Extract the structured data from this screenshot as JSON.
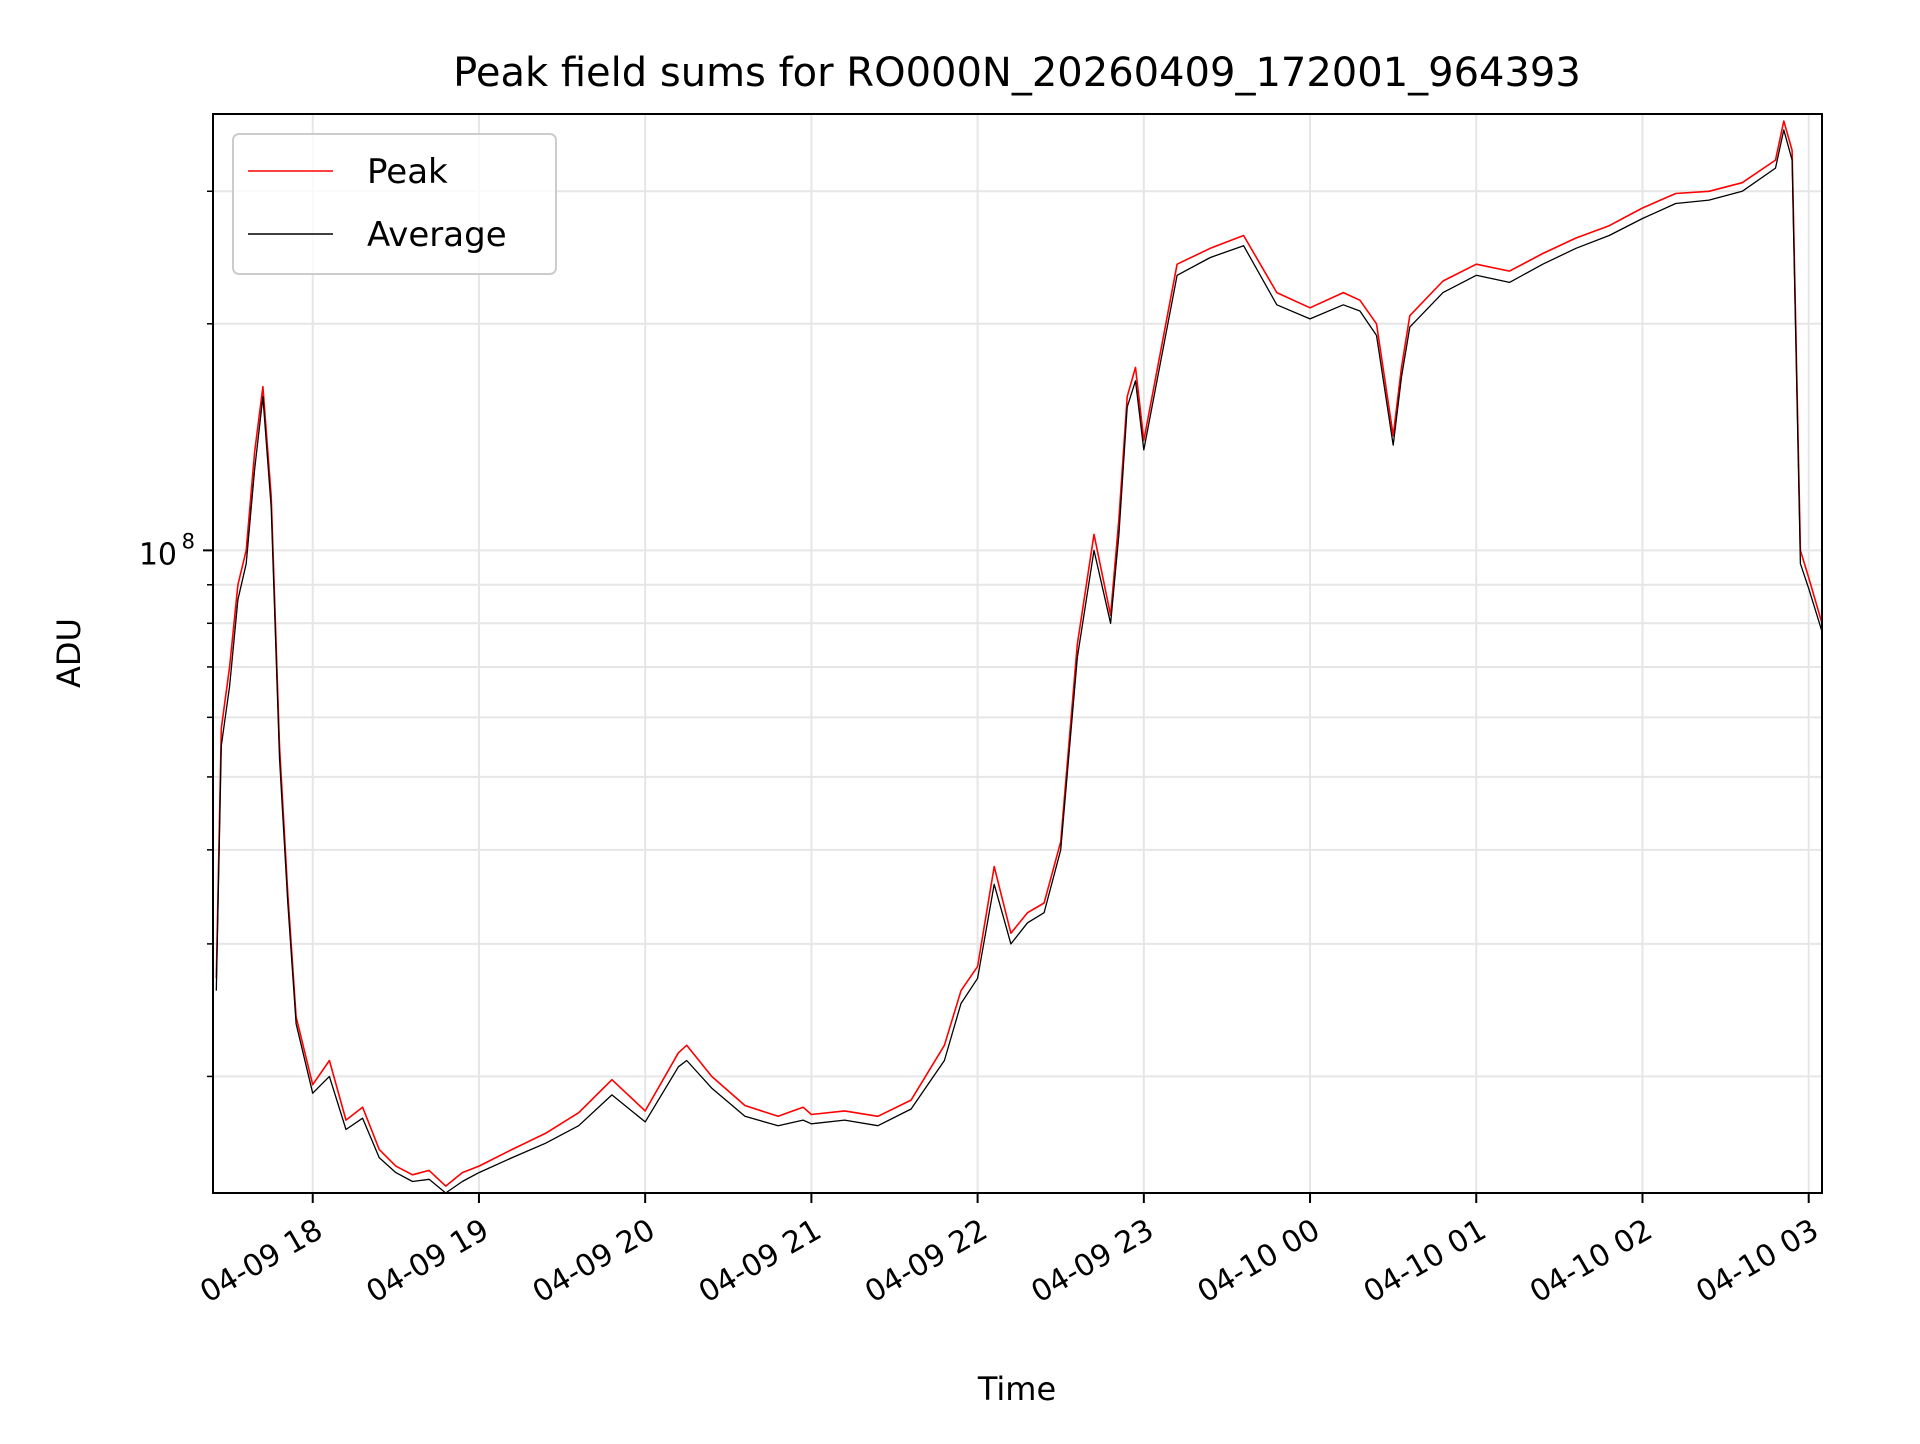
{
  "chart_data": {
    "type": "line",
    "title": "Peak field sums for RO000N_20260409_172001_964393",
    "xlabel": "Time",
    "ylabel": "ADU",
    "yscale": "log",
    "grid": true,
    "legend_position": "top-left",
    "xlim_hours": [
      17.4,
      27.08
    ],
    "ylim": [
      14000000,
      380000000
    ],
    "x_unit": "hours since 04-09 00:00",
    "x_ticks": [
      {
        "value": 18,
        "label": "04-09 18"
      },
      {
        "value": 19,
        "label": "04-09 19"
      },
      {
        "value": 20,
        "label": "04-09 20"
      },
      {
        "value": 21,
        "label": "04-09 21"
      },
      {
        "value": 22,
        "label": "04-09 22"
      },
      {
        "value": 23,
        "label": "04-09 23"
      },
      {
        "value": 24,
        "label": "04-10 00"
      },
      {
        "value": 25,
        "label": "04-10 01"
      },
      {
        "value": 26,
        "label": "04-10 02"
      },
      {
        "value": 27,
        "label": "04-10 03"
      }
    ],
    "y_major_ticks": [
      {
        "value": 100000000,
        "base": "10",
        "exp": "8"
      }
    ],
    "y_minor_ticks": [
      20000000,
      30000000,
      40000000,
      50000000,
      60000000,
      70000000,
      80000000,
      90000000,
      200000000,
      300000000
    ],
    "series": [
      {
        "name": "Peak",
        "color": "#ff0000",
        "x": [
          17.42,
          17.45,
          17.5,
          17.55,
          17.6,
          17.65,
          17.7,
          17.75,
          17.8,
          17.85,
          17.9,
          18.0,
          18.1,
          18.2,
          18.3,
          18.4,
          18.5,
          18.6,
          18.7,
          18.8,
          18.9,
          19.0,
          19.2,
          19.4,
          19.6,
          19.8,
          20.0,
          20.2,
          20.25,
          20.4,
          20.6,
          20.8,
          20.95,
          21.0,
          21.2,
          21.4,
          21.6,
          21.8,
          21.9,
          22.0,
          22.1,
          22.2,
          22.3,
          22.4,
          22.5,
          22.6,
          22.7,
          22.8,
          22.85,
          22.9,
          22.95,
          23.0,
          23.2,
          23.4,
          23.6,
          23.8,
          24.0,
          24.2,
          24.3,
          24.4,
          24.5,
          24.55,
          24.6,
          24.8,
          25.0,
          25.2,
          25.4,
          25.6,
          25.8,
          26.0,
          26.2,
          26.4,
          26.6,
          26.8,
          26.85,
          26.9,
          26.95,
          27.0,
          27.08
        ],
        "values": [
          27000000,
          58000000,
          70000000,
          90000000,
          100000000,
          135000000,
          165000000,
          118000000,
          55000000,
          35000000,
          24000000,
          19500000,
          21000000,
          17500000,
          18200000,
          16000000,
          15200000,
          14800000,
          15000000,
          14300000,
          14900000,
          15200000,
          16000000,
          16800000,
          17900000,
          19800000,
          18000000,
          21500000,
          22000000,
          20000000,
          18300000,
          17700000,
          18200000,
          17800000,
          18000000,
          17700000,
          18600000,
          22000000,
          26000000,
          28000000,
          38000000,
          31000000,
          33000000,
          34000000,
          41000000,
          75000000,
          105000000,
          82000000,
          110000000,
          160000000,
          175000000,
          140000000,
          240000000,
          252000000,
          262000000,
          220000000,
          210000000,
          220000000,
          215000000,
          200000000,
          142000000,
          175000000,
          205000000,
          228000000,
          240000000,
          235000000,
          248000000,
          260000000,
          270000000,
          285000000,
          298000000,
          300000000,
          308000000,
          330000000,
          372000000,
          340000000,
          100000000,
          92000000,
          80000000
        ]
      },
      {
        "name": "Average",
        "color": "#000000",
        "x": [
          17.42,
          17.45,
          17.5,
          17.55,
          17.6,
          17.65,
          17.7,
          17.75,
          17.8,
          17.85,
          17.9,
          18.0,
          18.1,
          18.2,
          18.3,
          18.4,
          18.5,
          18.6,
          18.7,
          18.8,
          18.9,
          19.0,
          19.2,
          19.4,
          19.6,
          19.8,
          20.0,
          20.2,
          20.25,
          20.4,
          20.6,
          20.8,
          20.95,
          21.0,
          21.2,
          21.4,
          21.6,
          21.8,
          21.9,
          22.0,
          22.1,
          22.2,
          22.3,
          22.4,
          22.5,
          22.6,
          22.7,
          22.8,
          22.85,
          22.9,
          22.95,
          23.0,
          23.2,
          23.4,
          23.6,
          23.8,
          24.0,
          24.2,
          24.3,
          24.4,
          24.5,
          24.55,
          24.6,
          24.8,
          25.0,
          25.2,
          25.4,
          25.6,
          25.8,
          26.0,
          26.2,
          26.4,
          26.6,
          26.8,
          26.85,
          26.9,
          26.95,
          27.0,
          27.08
        ],
        "values": [
          26000000,
          55000000,
          66000000,
          86000000,
          96000000,
          128000000,
          160000000,
          114000000,
          53000000,
          34000000,
          23500000,
          19000000,
          20000000,
          17000000,
          17600000,
          15600000,
          14900000,
          14500000,
          14600000,
          14000000,
          14500000,
          14900000,
          15600000,
          16300000,
          17200000,
          18900000,
          17400000,
          20600000,
          21000000,
          19300000,
          17700000,
          17200000,
          17500000,
          17300000,
          17500000,
          17200000,
          18100000,
          21000000,
          25000000,
          27000000,
          36000000,
          30000000,
          32000000,
          33000000,
          40000000,
          72000000,
          100000000,
          80000000,
          105000000,
          155000000,
          168000000,
          136000000,
          232000000,
          245000000,
          254000000,
          212000000,
          203000000,
          212000000,
          208000000,
          193000000,
          138000000,
          170000000,
          198000000,
          220000000,
          232000000,
          227000000,
          240000000,
          252000000,
          262000000,
          276000000,
          289000000,
          292000000,
          300000000,
          322000000,
          362000000,
          330000000,
          96000000,
          89000000,
          78000000
        ]
      }
    ]
  }
}
